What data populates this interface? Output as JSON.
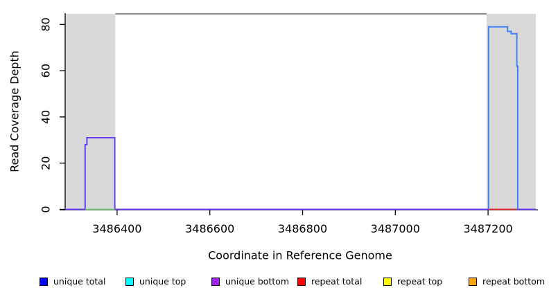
{
  "figure": {
    "xlabel": "Coordinate in Reference Genome",
    "ylabel": "Read Coverage Depth"
  },
  "chart_data": {
    "type": "line",
    "title": "",
    "xlabel": "Coordinate in Reference Genome",
    "ylabel": "Read Coverage Depth",
    "xlim": [
      3486288,
      3487303
    ],
    "ylim": [
      0,
      84.6
    ],
    "xticks": [
      3486400,
      3486600,
      3486800,
      3487000,
      3487200
    ],
    "yticks": [
      0,
      20,
      40,
      60,
      80
    ],
    "grid": false,
    "legend_position": "bottom",
    "axis_color": "#000000",
    "shaded_regions": [
      {
        "name": "repeat-region-left",
        "x0": 3486288,
        "x1": 3486396,
        "color": "#d9d9d9"
      },
      {
        "name": "repeat-region-right",
        "x0": 3487197,
        "x1": 3487303,
        "color": "#d9d9d9"
      }
    ],
    "top_boundary_line": {
      "x0": 3486396,
      "x1": 3487197,
      "y": 84.6,
      "color": "#8f8f8f"
    },
    "series": [
      {
        "name": "unique-bottom-trace",
        "color": "#6640ee",
        "points": [
          [
            3486288,
            0
          ],
          [
            3486331,
            0
          ],
          [
            3486331,
            28
          ],
          [
            3486335,
            28
          ],
          [
            3486335,
            31
          ],
          [
            3486395,
            31
          ],
          [
            3486395,
            0
          ],
          [
            3487303,
            0
          ]
        ]
      },
      {
        "name": "zero-line-green-segment",
        "color": "#77cc77",
        "points": [
          [
            3486332,
            0
          ],
          [
            3486395,
            0
          ]
        ]
      },
      {
        "name": "repeat-total-zero-segment",
        "color": "#e03232",
        "points": [
          [
            3487202,
            0
          ],
          [
            3487263,
            0
          ]
        ]
      },
      {
        "name": "unique-total-trace",
        "color": "#4282f5",
        "points": [
          [
            3487201,
            0
          ],
          [
            3487201,
            79
          ],
          [
            3487242,
            79
          ],
          [
            3487242,
            77
          ],
          [
            3487250,
            77
          ],
          [
            3487250,
            76
          ],
          [
            3487262,
            76
          ],
          [
            3487262,
            62
          ],
          [
            3487264,
            62
          ],
          [
            3487264,
            0
          ]
        ]
      }
    ],
    "legend": [
      {
        "label": "unique total",
        "color": "#0000ff"
      },
      {
        "label": "unique top",
        "color": "#00ffff"
      },
      {
        "label": "unique bottom",
        "color": "#a020f0"
      },
      {
        "label": "repeat total",
        "color": "#ff0000"
      },
      {
        "label": "repeat top",
        "color": "#ffff00"
      },
      {
        "label": "repeat bottom",
        "color": "#ffa500"
      }
    ]
  }
}
